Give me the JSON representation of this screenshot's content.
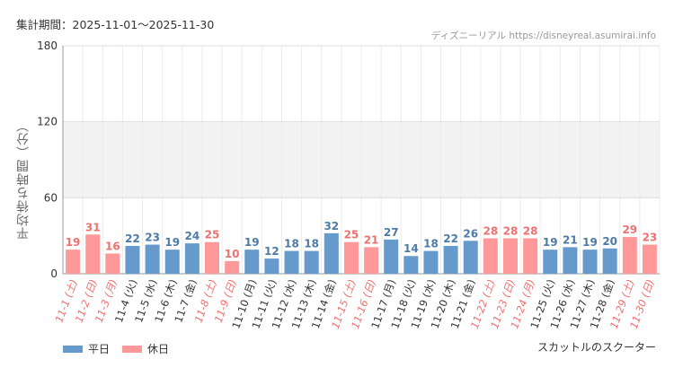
{
  "header": {
    "period": "集計期間：2025-11-01～2025-11-30",
    "source": "ディズニーリアル https://disneyreal.asumirai.info"
  },
  "footer": {
    "attraction": "スカットルのスクーター"
  },
  "colors": {
    "weekday": "#6699cc",
    "holiday": "#ff9999",
    "weekday_text": "#4d7aa6",
    "holiday_text": "#f07070"
  },
  "chart_data": {
    "type": "bar",
    "ylabel": "平均待ち時間（分）",
    "ylim": [
      0,
      180
    ],
    "yticks": [
      0,
      60,
      120,
      180
    ],
    "grid": true,
    "legend_position": "bottom-left",
    "series": [
      {
        "name": "平日",
        "color": "#6699cc"
      },
      {
        "name": "休日",
        "color": "#ff9999"
      }
    ],
    "categories": [
      "11-1 (土)",
      "11-2 (日)",
      "11-3 (月)",
      "11-4 (火)",
      "11-5 (水)",
      "11-6 (木)",
      "11-7 (金)",
      "11-8 (土)",
      "11-9 (日)",
      "11-10 (月)",
      "11-11 (火)",
      "11-12 (水)",
      "11-13 (木)",
      "11-14 (金)",
      "11-15 (土)",
      "11-16 (日)",
      "11-17 (月)",
      "11-18 (火)",
      "11-19 (水)",
      "11-20 (木)",
      "11-21 (金)",
      "11-22 (土)",
      "11-23 (日)",
      "11-24 (月)",
      "11-25 (火)",
      "11-26 (水)",
      "11-27 (木)",
      "11-28 (金)",
      "11-29 (土)",
      "11-30 (日)"
    ],
    "values": [
      19,
      31,
      16,
      22,
      23,
      19,
      24,
      25,
      10,
      19,
      12,
      18,
      18,
      32,
      25,
      21,
      27,
      14,
      18,
      22,
      26,
      28,
      28,
      28,
      19,
      21,
      19,
      20,
      29,
      23
    ],
    "holiday": [
      true,
      true,
      true,
      false,
      false,
      false,
      false,
      true,
      true,
      false,
      false,
      false,
      false,
      false,
      true,
      true,
      false,
      false,
      false,
      false,
      false,
      true,
      true,
      true,
      false,
      false,
      false,
      false,
      true,
      true
    ]
  }
}
